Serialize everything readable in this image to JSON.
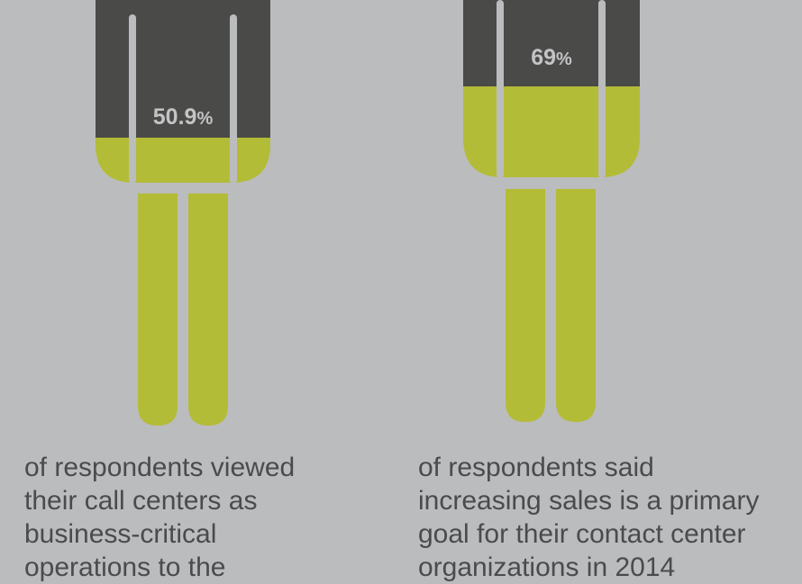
{
  "colors": {
    "background": "#bbbcbe",
    "figure_dark": "#4a4a48",
    "figure_fill": "#b3bc37",
    "text": "#4a4b4b",
    "percent_text": "#c4c4c6"
  },
  "figures": [
    {
      "value": "50.9",
      "unit": "%",
      "fill_fraction": 0.509,
      "caption_lines": [
        "of respondents viewed",
        "their call centers as",
        "business-critical",
        "operations to the"
      ]
    },
    {
      "value": "69",
      "unit": "%",
      "fill_fraction": 0.69,
      "caption_lines": [
        "of respondents said",
        "increasing sales is a primary",
        "goal for their contact center",
        "organizations in 2014"
      ]
    }
  ]
}
